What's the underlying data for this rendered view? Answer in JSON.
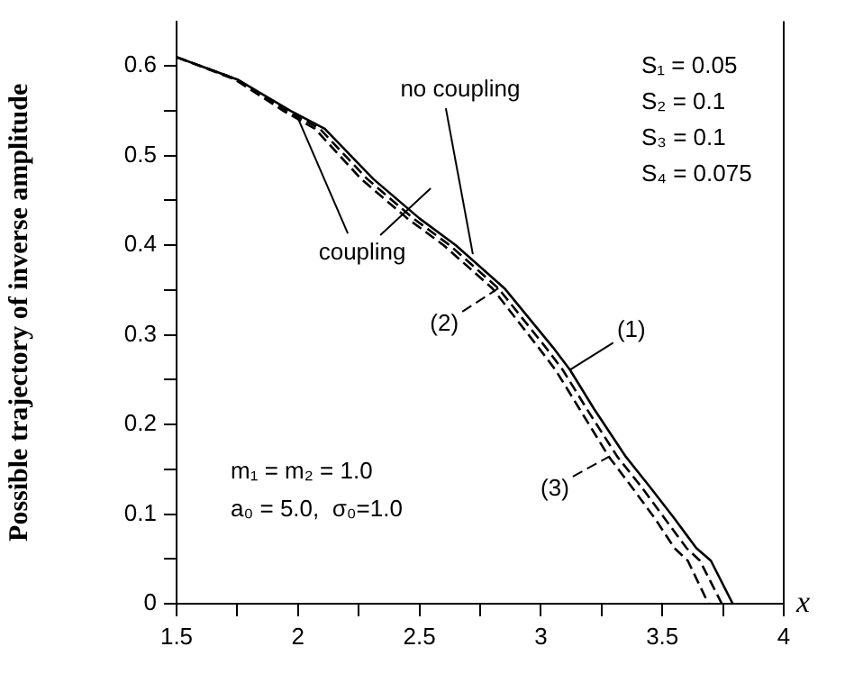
{
  "chart_data": {
    "type": "line",
    "ylabel": "Possible trajectory of inverse amplitude",
    "xlabel": "x",
    "xlim": [
      1.5,
      4
    ],
    "ylim": [
      0,
      0.65
    ],
    "xticks": [
      1.5,
      {
        "value": 1.75,
        "label": null
      },
      2,
      {
        "value": 2.25,
        "label": null
      },
      2.5,
      {
        "value": 2.75,
        "label": null
      },
      3,
      {
        "value": 3.25,
        "label": null
      },
      3.5,
      {
        "value": 3.75,
        "label": null
      },
      4
    ],
    "yticks": [
      0,
      {
        "value": 0.05,
        "label": null
      },
      0.1,
      {
        "value": 0.15,
        "label": null
      },
      0.2,
      {
        "value": 0.25,
        "label": null
      },
      0.3,
      {
        "value": 0.35,
        "label": null
      },
      0.4,
      {
        "value": 0.45,
        "label": null
      },
      0.5,
      {
        "value": 0.55,
        "label": null
      },
      0.6
    ],
    "grid": false,
    "legend": "right",
    "marker": "none",
    "series": [
      {
        "name": "(1)",
        "color": "#000000",
        "line_style": "solid",
        "x": [
          1.5,
          1.75,
          1.97,
          2.11,
          2.31,
          2.5,
          2.65,
          2.85,
          3.05,
          3.12,
          3.22,
          3.35,
          3.45,
          3.55,
          3.64,
          3.7,
          3.79
        ],
        "values": [
          0.61,
          0.585,
          0.55,
          0.53,
          0.474,
          0.43,
          0.4,
          0.352,
          0.286,
          0.261,
          0.217,
          0.164,
          0.13,
          0.095,
          0.062,
          0.048,
          0
        ]
      },
      {
        "name": "(2)",
        "color": "#000000",
        "line_style": "dashed",
        "x": [
          1.5,
          1.75,
          1.955,
          2.09,
          2.285,
          2.475,
          2.625,
          2.825,
          3.02,
          3.09,
          3.19,
          3.315,
          3.415,
          3.51,
          3.6,
          3.655,
          3.745
        ],
        "values": [
          0.61,
          0.585,
          0.55,
          0.53,
          0.474,
          0.43,
          0.4,
          0.352,
          0.286,
          0.261,
          0.217,
          0.164,
          0.13,
          0.095,
          0.062,
          0.048,
          0
        ]
      },
      {
        "name": "(3)",
        "color": "#000000",
        "line_style": "dashed",
        "x": [
          1.5,
          1.74,
          1.94,
          2.07,
          2.26,
          2.45,
          2.6,
          2.8,
          2.99,
          3.06,
          3.16,
          3.28,
          3.375,
          3.47,
          3.55,
          3.605,
          3.69
        ],
        "values": [
          0.61,
          0.585,
          0.55,
          0.53,
          0.474,
          0.43,
          0.4,
          0.352,
          0.286,
          0.261,
          0.217,
          0.164,
          0.13,
          0.095,
          0.062,
          0.048,
          0
        ]
      }
    ],
    "annotations": [
      {
        "text": "no coupling",
        "x": 2.72,
        "y": 0.39
      },
      {
        "text": "coupling",
        "x": 1.99,
        "y": 0.548
      },
      "S₁ = 0.05",
      "S₂ = 0.1",
      "S₃ = 0.1",
      "S₄ = 0.075",
      "m₁ = m₂ = 1.0",
      "a₀ = 5.0,  σ₀=1.0"
    ]
  }
}
